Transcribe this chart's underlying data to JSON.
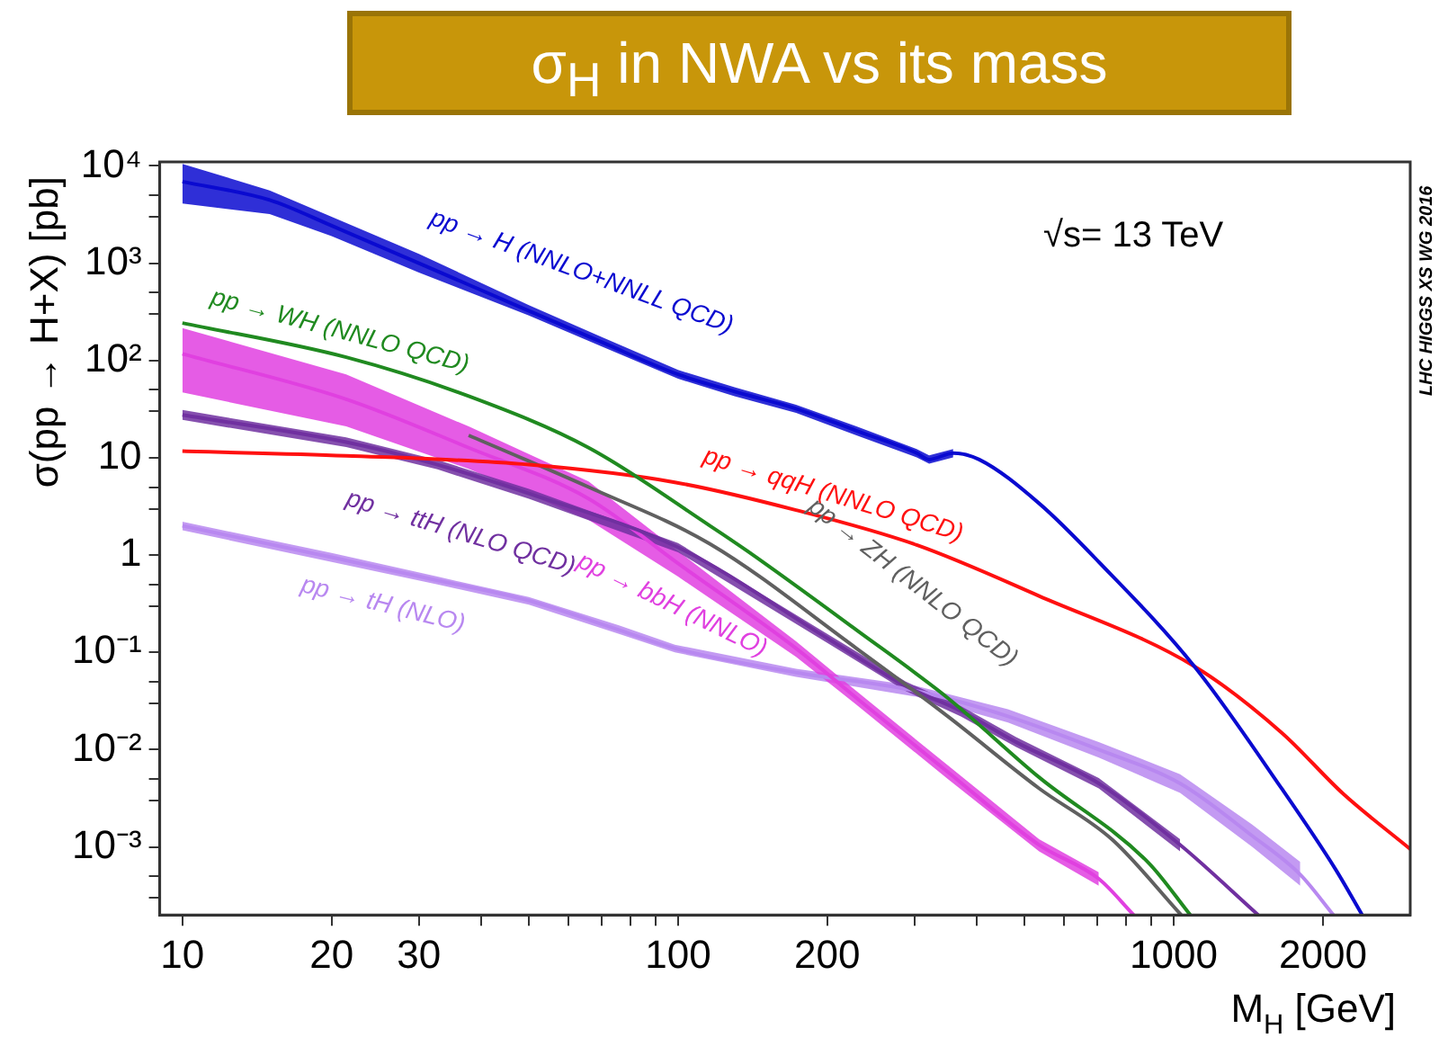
{
  "chart_data": {
    "type": "line",
    "title": "σ$_{H}$ in NWA vs its mass",
    "xlabel": "M$_{H}$ [GeV]",
    "ylabel": "σ(pp → H+X) [pb]",
    "log": "xy",
    "grid": false,
    "legend": false,
    "marker": "none",
    "line_style": "solid",
    "xlim": [
      9,
      3000
    ],
    "ylim": [
      0.0002,
      11000
    ],
    "xticks": [
      10,
      20,
      30,
      {
        "value": 40,
        "label": null
      },
      {
        "value": 50,
        "label": null
      },
      {
        "value": 60,
        "label": null
      },
      {
        "value": 70,
        "label": null
      },
      {
        "value": 80,
        "label": null
      },
      {
        "value": 90,
        "label": null
      },
      100,
      200,
      {
        "value": 300,
        "label": null
      },
      {
        "value": 400,
        "label": null
      },
      {
        "value": 500,
        "label": null
      },
      {
        "value": 600,
        "label": null
      },
      {
        "value": 700,
        "label": null
      },
      {
        "value": 800,
        "label": null
      },
      {
        "value": 900,
        "label": null
      },
      1000,
      2000
    ],
    "yticks": [
      {
        "value": 0.0003,
        "label": null
      },
      {
        "value": 0.0005,
        "label": null
      },
      {
        "value": 0.001,
        "label": "10⁻³"
      },
      {
        "value": 0.003,
        "label": null
      },
      {
        "value": 0.005,
        "label": null
      },
      {
        "value": 0.01,
        "label": "10⁻²"
      },
      {
        "value": 0.03,
        "label": null
      },
      {
        "value": 0.05,
        "label": null
      },
      {
        "value": 0.1,
        "label": "10⁻¹"
      },
      {
        "value": 0.3,
        "label": null
      },
      {
        "value": 0.5,
        "label": null
      },
      1,
      {
        "value": 3,
        "label": null
      },
      {
        "value": 5,
        "label": null
      },
      10,
      {
        "value": 30,
        "label": null
      },
      {
        "value": 50,
        "label": null
      },
      {
        "value": 100,
        "label": "10²"
      },
      {
        "value": 300,
        "label": null
      },
      {
        "value": 500,
        "label": null
      },
      {
        "value": 1000,
        "label": "10³"
      },
      {
        "value": 3000,
        "label": null
      },
      {
        "value": 5000,
        "label": null
      },
      {
        "value": 10000,
        "label": "10⁴"
      }
    ],
    "annotations": [
      "√s= 13 TeV",
      "LHC HIGGS XS WG 2016"
    ],
    "series": [
      {
        "name": "pp → H (NNLO+NNLL QCD)",
        "color": "#0a0ad0",
        "x": [
          10,
          15,
          20,
          30,
          50,
          70,
          100,
          130,
          173,
          229,
          303,
          321,
          359,
          405,
          535,
          706,
          1100,
          1650,
          2120,
          2400
        ],
        "values": [
          6900,
          4460,
          2430,
          1000,
          324,
          155,
          72,
          48,
          32,
          19,
          11.2,
          9.6,
          11.2,
          9.6,
          3.4,
          0.85,
          0.072,
          0.004,
          0.00059,
          0.0002
        ],
        "upper": [
          10500,
          5600,
          3000,
          1250,
          370,
          175,
          80,
          53,
          35,
          21,
          12.3,
          10.6,
          12.3,
          null,
          null,
          null,
          null,
          null,
          null,
          null
        ],
        "lower": [
          4100,
          3200,
          1900,
          800,
          290,
          140,
          65,
          43,
          29,
          17,
          10.1,
          8.7,
          10.1,
          null,
          null,
          null,
          null,
          null,
          null,
          null
        ]
      },
      {
        "name": "pp → WH (NNLO QCD)",
        "color": "#208a20",
        "x": [
          10,
          21.4,
          37.8,
          66,
          116,
          138,
          229,
          350,
          535,
          889,
          1080
        ],
        "values": [
          243,
          108,
          43,
          12.7,
          2.0,
          1.1,
          0.17,
          0.034,
          0.0052,
          0.00069,
          0.0002
        ]
      },
      {
        "name": "pp → qqH (NNLO QCD)",
        "color": "#ff1010",
        "x": [
          10,
          21.4,
          50,
          98.5,
          173,
          303,
          535,
          1100,
          1650,
          2200,
          3000
        ],
        "values": [
          11.7,
          10.5,
          8.5,
          5.6,
          2.9,
          1.27,
          0.38,
          0.072,
          0.015,
          0.0035,
          0.00095
        ]
      },
      {
        "name": "pp → ZH (NNLO QCD)",
        "color": "#606060",
        "x": [
          37.8,
          66,
          116,
          229,
          350,
          535,
          750,
          1035
        ],
        "values": [
          17,
          5.0,
          1.3,
          0.11,
          0.022,
          0.004,
          0.0012,
          0.0002
        ]
      },
      {
        "name": "pp → ttH (NLO QCD)",
        "color": "#7030a0",
        "x": [
          10,
          21.4,
          32.7,
          50,
          100,
          200,
          288,
          372,
          480,
          706,
          1030,
          1480
        ],
        "values": [
          27.6,
          14.5,
          8.5,
          4.3,
          1.2,
          0.14,
          0.045,
          0.025,
          0.012,
          0.0045,
          0.00105,
          0.0002
        ],
        "upper": [
          31,
          16.2,
          9.5,
          4.8,
          1.33,
          0.155,
          0.05,
          0.028,
          0.0135,
          0.0051,
          0.0012,
          null
        ],
        "lower": [
          24.5,
          12.9,
          7.6,
          3.8,
          1.07,
          0.125,
          0.04,
          0.022,
          0.0107,
          0.004,
          0.0009,
          null
        ]
      },
      {
        "name": "pp → bbH (NNLO)",
        "color": "#e040e0",
        "x": [
          10,
          21.4,
          37.8,
          66,
          100,
          173,
          229,
          350,
          535,
          706,
          830
        ],
        "values": [
          117,
          40,
          12.7,
          3.8,
          0.82,
          0.11,
          0.034,
          0.0059,
          0.00105,
          0.00047,
          0.0002
        ],
        "upper": [
          215,
          72,
          21,
          5.7,
          1.1,
          0.13,
          0.04,
          0.0069,
          0.0012,
          0.00055,
          null
        ],
        "lower": [
          47,
          21,
          7.7,
          2.3,
          0.6,
          0.09,
          0.029,
          0.005,
          0.0009,
          0.0004,
          null
        ]
      },
      {
        "name": "pp → tH (NLO)",
        "color": "#b888f0",
        "x": [
          10,
          20,
          32.7,
          50,
          76,
          98.5,
          173,
          303,
          463,
          706,
          1030,
          1440,
          1800,
          2100
        ],
        "values": [
          2.0,
          0.95,
          0.55,
          0.34,
          0.17,
          0.11,
          0.062,
          0.04,
          0.022,
          0.01,
          0.0045,
          0.0013,
          0.00052,
          0.0002
        ],
        "upper": [
          2.2,
          1.05,
          0.6,
          0.37,
          0.19,
          0.12,
          0.068,
          0.045,
          0.026,
          0.012,
          0.0056,
          0.0017,
          0.0007,
          null
        ],
        "lower": [
          1.8,
          0.85,
          0.5,
          0.31,
          0.155,
          0.1,
          0.056,
          0.035,
          0.019,
          0.0083,
          0.0036,
          0.001,
          0.0004,
          null
        ]
      }
    ]
  }
}
